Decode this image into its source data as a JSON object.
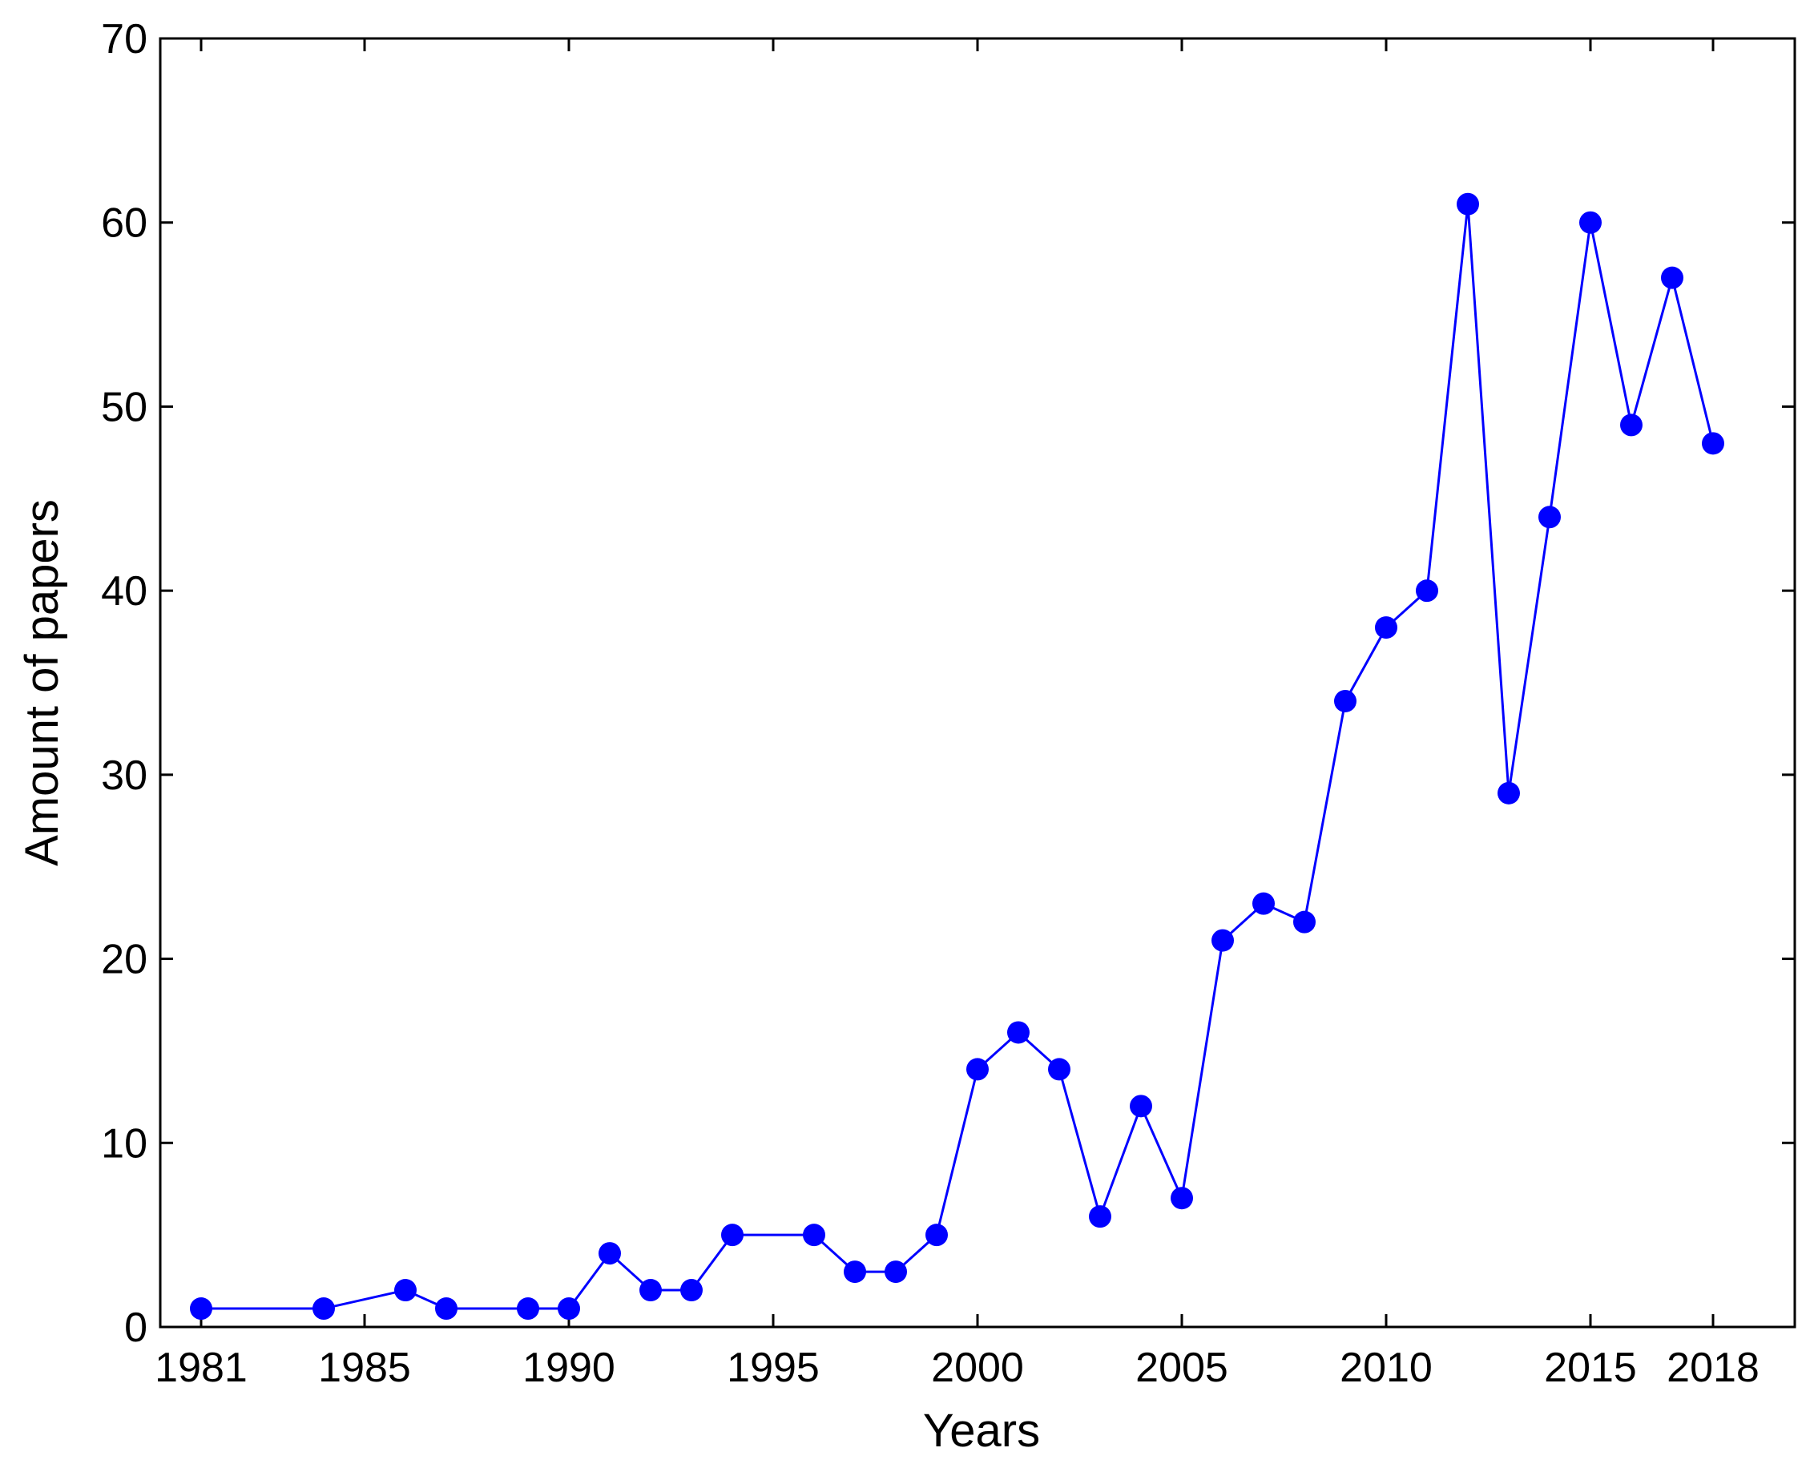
{
  "chart_data": {
    "type": "line",
    "title": "",
    "xlabel": "Years",
    "ylabel": "Amount of papers",
    "xlim": [
      1980,
      2020
    ],
    "ylim": [
      0,
      70
    ],
    "x_ticks": [
      1981,
      1985,
      1990,
      1995,
      2000,
      2005,
      2010,
      2015,
      2018
    ],
    "y_ticks": [
      0,
      10,
      20,
      30,
      40,
      50,
      60,
      70
    ],
    "grid": false,
    "legend": "none",
    "series": [
      {
        "color": "#0000ff",
        "marker": "filled-circle",
        "x": [
          1981,
          1984,
          1986,
          1987,
          1989,
          1990,
          1991,
          1992,
          1993,
          1994,
          1996,
          1997,
          1998,
          1999,
          2000,
          2001,
          2002,
          2003,
          2004,
          2005,
          2006,
          2007,
          2008,
          2009,
          2010,
          2011,
          2012,
          2013,
          2014,
          2015,
          2016,
          2017,
          2018
        ],
        "y": [
          1,
          1,
          2,
          1,
          1,
          1,
          4,
          2,
          2,
          5,
          5,
          3,
          3,
          5,
          14,
          16,
          14,
          6,
          12,
          7,
          21,
          23,
          22,
          34,
          38,
          40,
          61,
          29,
          44,
          60,
          49,
          57,
          48
        ]
      }
    ]
  }
}
